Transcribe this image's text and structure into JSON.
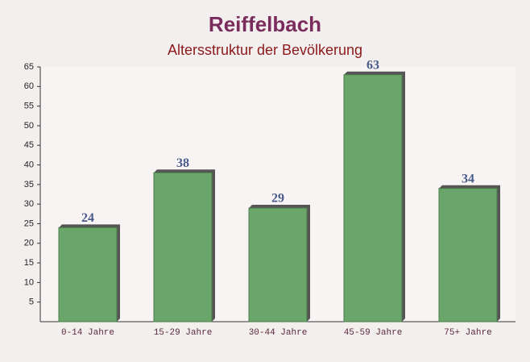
{
  "chart_data": {
    "type": "bar",
    "title": "Reiffelbach",
    "subtitle": "Altersstruktur der Bevölkerung",
    "categories": [
      "0-14 Jahre",
      "15-29 Jahre",
      "30-44 Jahre",
      "45-59 Jahre",
      "75+ Jahre"
    ],
    "values": [
      24,
      38,
      29,
      63,
      34
    ],
    "color": "#6aa56a",
    "ylim": [
      0,
      65
    ],
    "yticks": [
      5,
      10,
      15,
      20,
      25,
      30,
      35,
      40,
      45,
      50,
      55,
      60,
      65
    ]
  }
}
